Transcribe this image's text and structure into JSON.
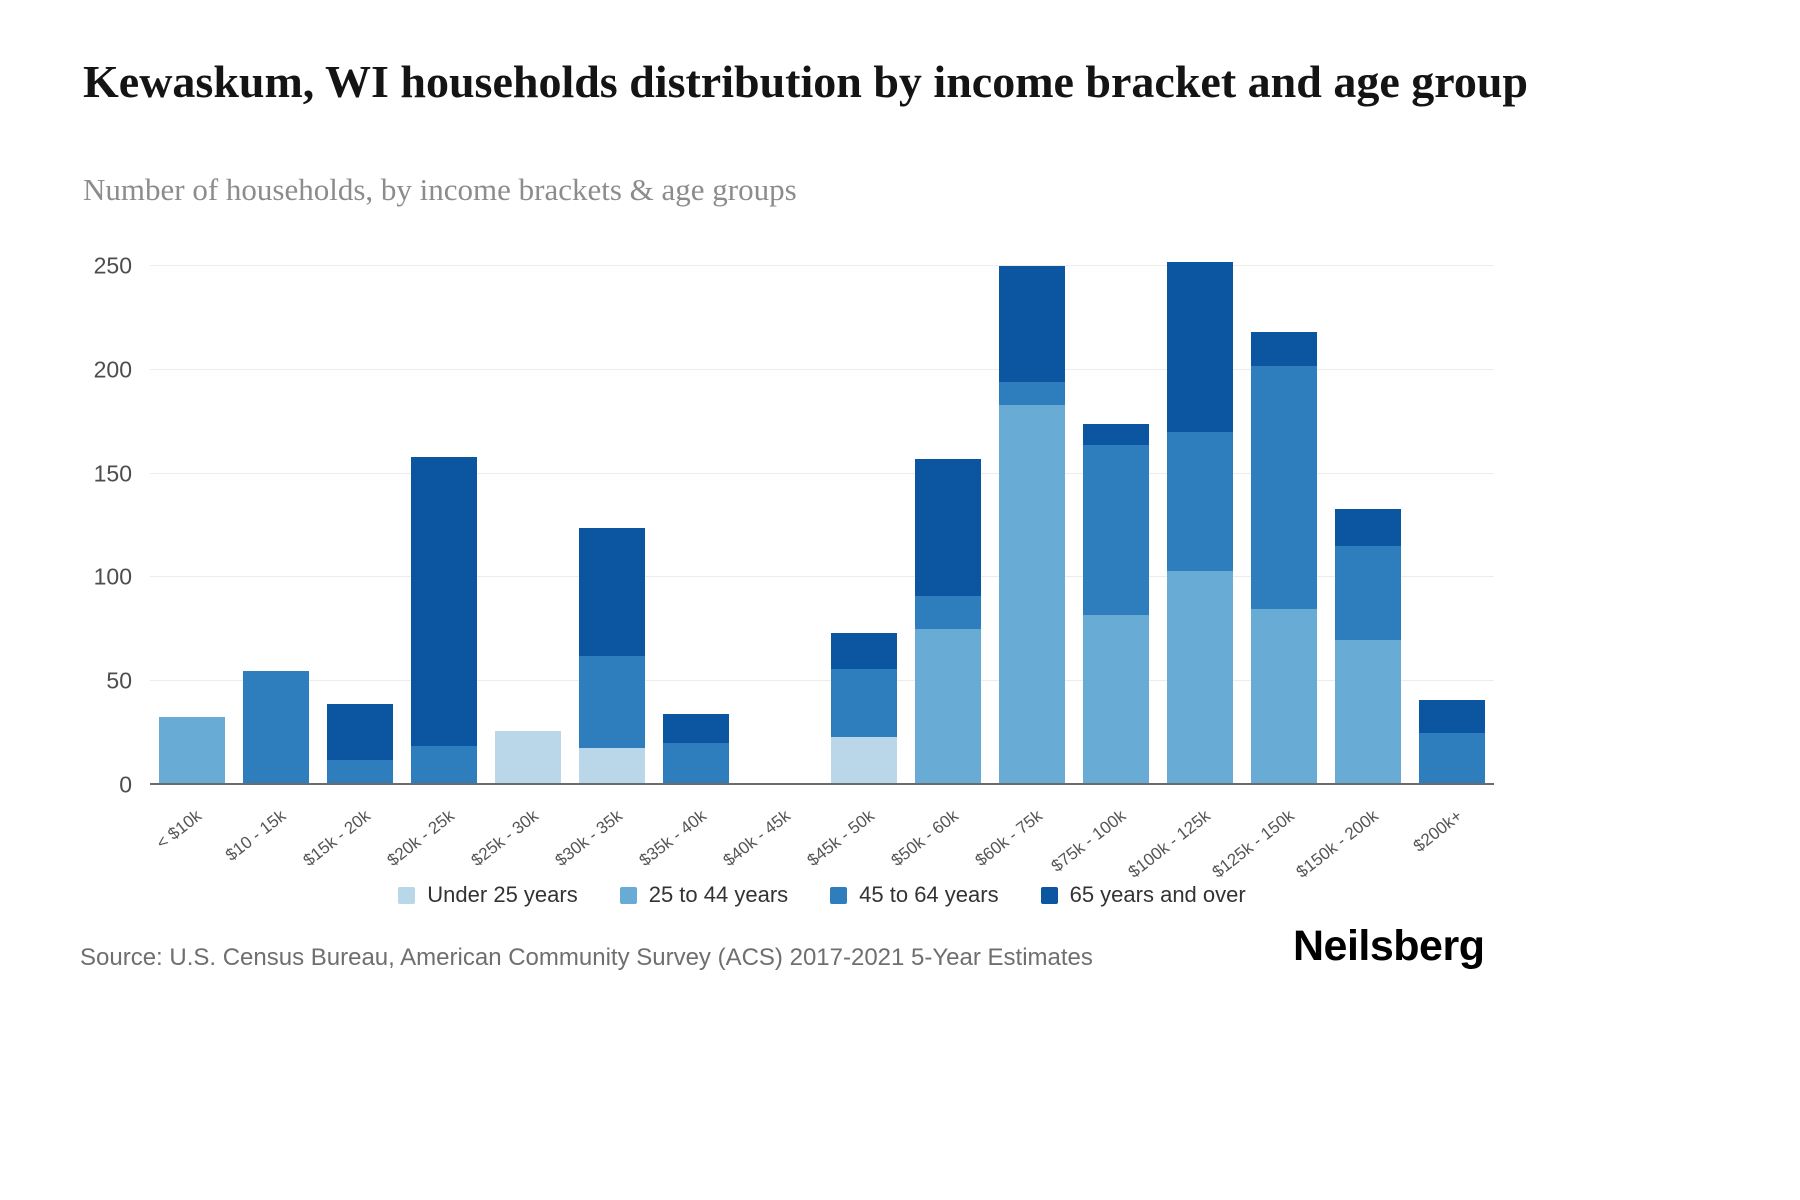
{
  "header": {
    "title": "Kewaskum, WI households distribution by income bracket and age group",
    "subtitle": "Number of households, by income brackets & age groups"
  },
  "chart_data": {
    "type": "bar",
    "stacked": true,
    "title": "Kewaskum, WI households distribution by income bracket and age group",
    "subtitle": "Number of households, by income brackets & age groups",
    "xlabel": "",
    "ylabel": "Number of households",
    "ylim": [
      0,
      250
    ],
    "yticks": [
      0,
      50,
      100,
      150,
      200,
      250
    ],
    "grid": true,
    "legend_position": "bottom",
    "categories": [
      "< $10k",
      "$10 - 15k",
      "$15k - 20k",
      "$20k - 25k",
      "$25k - 30k",
      "$30k - 35k",
      "$35k - 40k",
      "$40k - 45k",
      "$45k - 50k",
      "$50k - 60k",
      "$60k - 75k",
      "$75k - 100k",
      "$100k - 125k",
      "$125k - 150k",
      "$150k - 200k",
      "$200k+"
    ],
    "series": [
      {
        "name": "Under 25 years",
        "color": "#b9d7e9",
        "values": [
          0,
          0,
          0,
          0,
          26,
          18,
          0,
          0,
          23,
          0,
          0,
          0,
          0,
          0,
          0,
          0
        ]
      },
      {
        "name": "25 to 44 years",
        "color": "#68abd4",
        "values": [
          33,
          0,
          0,
          0,
          0,
          0,
          0,
          0,
          0,
          75,
          183,
          82,
          103,
          85,
          70,
          0
        ]
      },
      {
        "name": "45 to 64 years",
        "color": "#2e7ebd",
        "values": [
          0,
          55,
          12,
          19,
          0,
          44,
          20,
          0,
          33,
          16,
          11,
          82,
          67,
          117,
          45,
          25
        ]
      },
      {
        "name": "65 years and over",
        "color": "#0c55a0",
        "values": [
          0,
          0,
          27,
          139,
          0,
          62,
          14,
          0,
          17,
          66,
          56,
          10,
          82,
          16,
          18,
          16
        ]
      }
    ]
  },
  "footer": {
    "source": "Source: U.S. Census Bureau, American Community Survey (ACS) 2017-2021 5-Year Estimates",
    "brand": "Neilsberg"
  }
}
